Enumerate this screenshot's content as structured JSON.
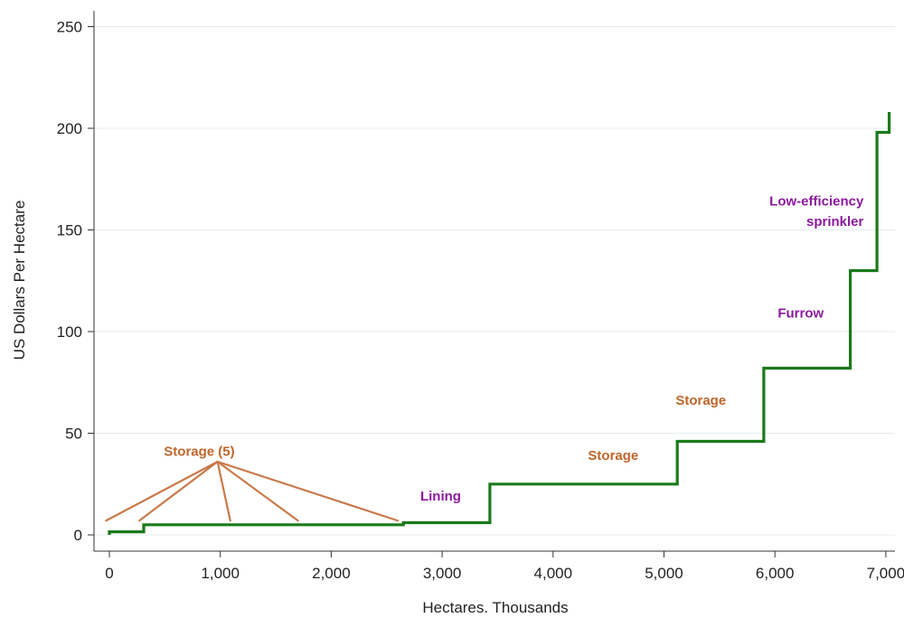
{
  "chart_data": {
    "type": "line",
    "title": "",
    "xlabel": "Hectares. Thousands",
    "ylabel": "US Dollars Per Hectare",
    "xlim": [
      -100,
      7100
    ],
    "ylim": [
      -10,
      257
    ],
    "x_ticks": [
      0,
      1000,
      2000,
      3000,
      4000,
      5000,
      6000,
      7000
    ],
    "x_tick_labels": [
      "0",
      "1,000",
      "2,000",
      "3,000",
      "4,000",
      "5,000",
      "6,000",
      "7,000"
    ],
    "y_ticks": [
      0,
      50,
      100,
      150,
      200,
      250
    ],
    "y_tick_labels": [
      "0",
      "50",
      "100",
      "150",
      "200",
      "250"
    ],
    "grid": true,
    "series": [
      {
        "color": "#1a7a1a",
        "step_points": [
          [
            0,
            0
          ],
          [
            0,
            1.5
          ],
          [
            310,
            1.5
          ],
          [
            310,
            5
          ],
          [
            2650,
            5
          ],
          [
            2650,
            6
          ],
          [
            3430,
            6
          ],
          [
            3430,
            25
          ],
          [
            5120,
            25
          ],
          [
            5120,
            46
          ],
          [
            5900,
            46
          ],
          [
            5900,
            82
          ],
          [
            6680,
            82
          ],
          [
            6680,
            130
          ],
          [
            6920,
            130
          ],
          [
            6920,
            198
          ],
          [
            7030,
            198
          ],
          [
            7030,
            208
          ]
        ]
      }
    ],
    "annotations": [
      {
        "text": "Storage (5)",
        "color": "#c0652a",
        "x": 1130,
        "y": 39
      },
      {
        "text": "Lining",
        "color": "#8b1a9c",
        "x": 3170,
        "y": 17
      },
      {
        "text": "Storage",
        "color": "#c0652a",
        "x": 4770,
        "y": 37
      },
      {
        "text": "Storage",
        "color": "#c0652a",
        "x": 5560,
        "y": 64
      },
      {
        "text": "Furrow",
        "color": "#8b1a9c",
        "x": 6440,
        "y": 107
      },
      {
        "text": "Low-efficiency",
        "color": "#8b1a9c",
        "x": 6800,
        "y": 162
      },
      {
        "text": "sprinkler",
        "color": "#8b1a9c",
        "x": 6800,
        "y": 152
      }
    ],
    "storage_pointer": {
      "color": "#c87a4a",
      "origin": [
        975,
        36
      ],
      "targets": [
        [
          -30,
          7
        ],
        [
          270,
          7
        ],
        [
          1090,
          7
        ],
        [
          1700,
          7
        ],
        [
          2600,
          7
        ]
      ]
    }
  }
}
